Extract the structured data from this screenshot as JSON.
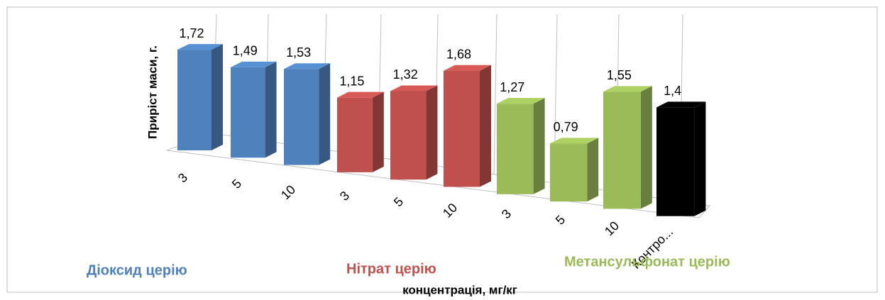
{
  "chart_data": {
    "type": "bar3d",
    "y_label": "Приріст маси, г.",
    "x_label": "концентрація, мг/кг",
    "categories": [
      "3",
      "5",
      "10",
      "3",
      "5",
      "10",
      "3",
      "5",
      "10",
      "Контро..."
    ],
    "values": [
      1.72,
      1.49,
      1.53,
      1.15,
      1.32,
      1.68,
      1.27,
      0.79,
      1.55,
      1.4
    ],
    "value_labels": [
      "1,72",
      "1,49",
      "1,53",
      "1,15",
      "1,32",
      "1,68",
      "1,27",
      "0,79",
      "1,55",
      "1,4"
    ],
    "colors": [
      "#4f81bd",
      "#4f81bd",
      "#4f81bd",
      "#c0504d",
      "#c0504d",
      "#c0504d",
      "#9bbb59",
      "#9bbb59",
      "#9bbb59",
      "#000000"
    ],
    "ylim": [
      0,
      2
    ],
    "annotations": [
      {
        "text": "Діоксид церію",
        "color": "#4f81bd"
      },
      {
        "text": "Нітрат церію",
        "color": "#c0504d"
      },
      {
        "text": "Метансульфонат церію",
        "color": "#9bbb59"
      }
    ]
  }
}
